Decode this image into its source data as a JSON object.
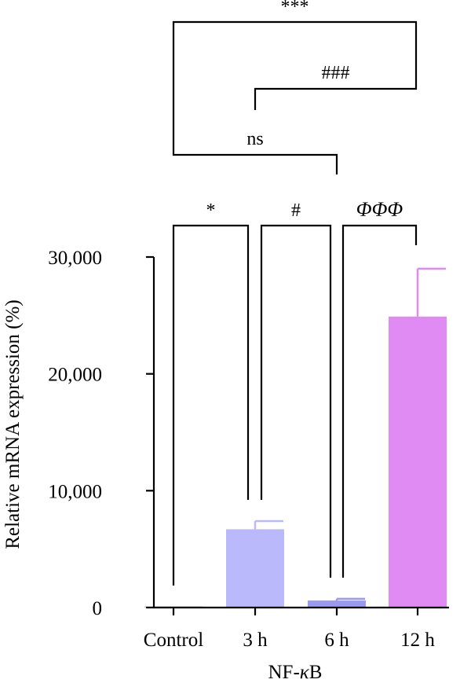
{
  "chart_data": {
    "type": "bar",
    "categories": [
      "Control",
      "3 h",
      "6 h",
      "12 h"
    ],
    "values": [
      100,
      6700,
      600,
      24900
    ],
    "error": [
      0,
      700,
      150,
      4100
    ],
    "colors": [
      "#b9b9fb",
      "#b9b9fb",
      "#9a9af0",
      "#e08af3"
    ],
    "xlabel": "NF-κB",
    "xlabel_prefix": "NF-",
    "xlabel_kappa": "κ",
    "xlabel_suffix": "B",
    "ylabel": "Relative mRNA expression (%)",
    "ylim": [
      0,
      30000
    ],
    "yticks": [
      0,
      10000,
      20000,
      30000
    ],
    "ytick_labels": [
      "0",
      "10,000",
      "20,000",
      "30,000"
    ],
    "grid": false,
    "legend": "none",
    "significance": [
      {
        "from": 0,
        "to": 3,
        "label": "***"
      },
      {
        "from": 1,
        "to": 3,
        "label": "###"
      },
      {
        "from": 0,
        "to": 2,
        "label": "ns"
      },
      {
        "from": 0,
        "to": 1,
        "label": "*"
      },
      {
        "from": 1,
        "to": 2,
        "label": "#"
      },
      {
        "from": 2,
        "to": 3,
        "label": "ΦΦΦ"
      }
    ]
  }
}
